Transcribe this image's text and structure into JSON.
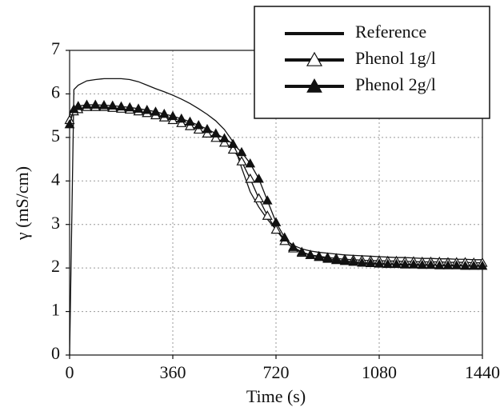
{
  "chart_data": {
    "type": "line",
    "xlabel": "Time (s)",
    "ylabel": "γ (mS/cm)",
    "x": [
      0,
      15,
      30,
      60,
      90,
      120,
      150,
      180,
      210,
      240,
      270,
      300,
      330,
      360,
      390,
      420,
      450,
      480,
      510,
      540,
      570,
      600,
      630,
      660,
      690,
      720,
      750,
      780,
      810,
      840,
      870,
      900,
      930,
      960,
      990,
      1020,
      1050,
      1080,
      1110,
      1140,
      1170,
      1200,
      1230,
      1260,
      1290,
      1320,
      1350,
      1380,
      1410,
      1440
    ],
    "series": [
      {
        "name": "Reference",
        "color": "#111111",
        "marker": "none",
        "values": [
          0,
          6.1,
          6.2,
          6.3,
          6.33,
          6.35,
          6.35,
          6.35,
          6.33,
          6.28,
          6.2,
          6.12,
          6.05,
          5.97,
          5.88,
          5.78,
          5.66,
          5.53,
          5.38,
          5.18,
          4.9,
          4.3,
          3.75,
          3.4,
          3.12,
          2.88,
          2.67,
          2.52,
          2.44,
          2.39,
          2.36,
          2.34,
          2.32,
          2.3,
          2.29,
          2.28,
          2.27,
          2.26,
          2.25,
          2.24,
          2.24,
          2.23,
          2.22,
          2.22,
          2.21,
          2.21,
          2.2,
          2.2,
          2.19,
          2.19
        ]
      },
      {
        "name": "Phenol 1g/l",
        "color": "#111111",
        "marker": "open-triangle",
        "values": [
          5.4,
          5.6,
          5.65,
          5.7,
          5.7,
          5.7,
          5.68,
          5.66,
          5.64,
          5.6,
          5.56,
          5.51,
          5.46,
          5.4,
          5.33,
          5.26,
          5.18,
          5.09,
          4.99,
          4.88,
          4.72,
          4.45,
          4.05,
          3.6,
          3.2,
          2.88,
          2.62,
          2.45,
          2.35,
          2.3,
          2.27,
          2.24,
          2.22,
          2.2,
          2.19,
          2.18,
          2.17,
          2.17,
          2.16,
          2.16,
          2.15,
          2.15,
          2.14,
          2.14,
          2.14,
          2.13,
          2.13,
          2.13,
          2.12,
          2.12
        ]
      },
      {
        "name": "Phenol 2g/l",
        "color": "#111111",
        "marker": "filled-triangle",
        "values": [
          5.3,
          5.65,
          5.72,
          5.75,
          5.75,
          5.74,
          5.73,
          5.71,
          5.69,
          5.66,
          5.63,
          5.59,
          5.54,
          5.49,
          5.43,
          5.36,
          5.28,
          5.19,
          5.09,
          4.98,
          4.85,
          4.66,
          4.4,
          4.05,
          3.55,
          3.05,
          2.7,
          2.48,
          2.37,
          2.3,
          2.25,
          2.21,
          2.18,
          2.16,
          2.14,
          2.12,
          2.11,
          2.1,
          2.09,
          2.09,
          2.08,
          2.08,
          2.07,
          2.07,
          2.06,
          2.06,
          2.06,
          2.05,
          2.05,
          2.05
        ]
      }
    ],
    "xlim": [
      0,
      1440
    ],
    "xticks": [
      0,
      360,
      720,
      1080,
      1440
    ],
    "ylim": [
      0,
      7
    ],
    "yticks": [
      0,
      1,
      2,
      3,
      4,
      5,
      6,
      7
    ],
    "grid": true,
    "legend": "upper right"
  }
}
